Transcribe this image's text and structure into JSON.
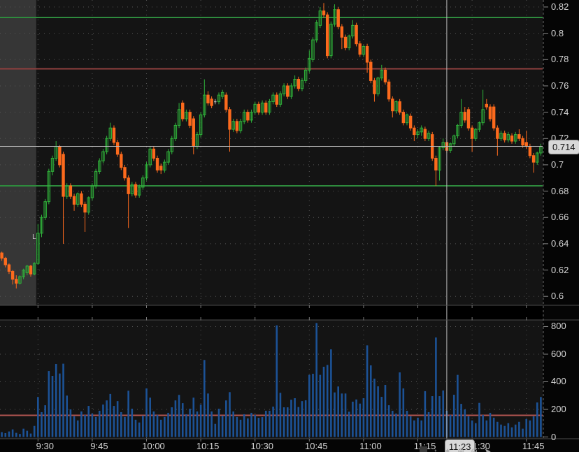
{
  "colors": {
    "up_candle": "#2fb23a",
    "down_candle": "#fc6a1d",
    "neutral_candle": "#b5b5b5",
    "volume_bar": "#1c5296",
    "level_green": "#2e8b3d",
    "level_red": "#8f3f3e",
    "volume_red_line": "#b15551",
    "crosshair": "#bbbbbb",
    "pane_background": "#141414",
    "outer_background": "#050505",
    "premarket_shade": "rgba(128,128,128,0.32)",
    "grid_dots": "#555555",
    "pane_border": "#4d4d4d",
    "axis_text": "#d6d6d6",
    "badge_background": "#d8d8d8",
    "badge_text": "#141414"
  },
  "chart_data": {
    "type": "candlestick_with_volume",
    "interval": "1m",
    "start_time": "9:20",
    "session_start_index": 10,
    "x_axis": {
      "tick_labels": [
        "9:30",
        "9:45",
        "10:00",
        "10:15",
        "10:30",
        "10:45",
        "11:00",
        "11:15",
        "11:30",
        "11:45"
      ],
      "tick_candle_indices": [
        10,
        25,
        40,
        55,
        70,
        85,
        100,
        115,
        130,
        145
      ],
      "crosshair_label": "11:23",
      "crosshair_candle_index": 123
    },
    "price_axis": {
      "tick_labels": [
        "0.82",
        "0.8",
        "0.78",
        "0.76",
        "0.74",
        "0.72",
        "0.7",
        "0.68",
        "0.66",
        "0.64",
        "0.62",
        "0.6"
      ],
      "tick_values": [
        0.82,
        0.8,
        0.78,
        0.76,
        0.74,
        0.72,
        0.7,
        0.68,
        0.66,
        0.64,
        0.62,
        0.6
      ],
      "view_max": 0.8253,
      "view_min": 0.5932,
      "last_price": 0.714,
      "last_price_label": "0.714"
    },
    "volume_axis": {
      "tick_labels": [
        "800",
        "600",
        "400",
        "200",
        "0"
      ],
      "tick_values": [
        800,
        600,
        400,
        200,
        0
      ],
      "view_max": 848,
      "red_line_value": 157
    },
    "levels": {
      "green_lines": [
        0.812,
        0.684
      ],
      "red_lines": [
        0.773
      ]
    },
    "marker": {
      "text": "L",
      "candle_index": 9,
      "price": 0.645
    },
    "candles": [
      [
        0.633,
        0.634,
        0.627,
        0.629
      ],
      [
        0.629,
        0.63,
        0.622,
        0.624
      ],
      [
        0.624,
        0.625,
        0.617,
        0.619
      ],
      [
        0.619,
        0.62,
        0.609,
        0.613
      ],
      [
        0.613,
        0.616,
        0.606,
        0.61
      ],
      [
        0.61,
        0.616,
        0.609,
        0.615
      ],
      [
        0.615,
        0.621,
        0.613,
        0.62
      ],
      [
        0.618,
        0.624,
        0.616,
        0.623
      ],
      [
        0.623,
        0.624,
        0.615,
        0.617
      ],
      [
        0.617,
        0.626,
        0.616,
        0.625
      ],
      [
        0.625,
        0.655,
        0.624,
        0.648
      ],
      [
        0.648,
        0.662,
        0.645,
        0.66
      ],
      [
        0.66,
        0.674,
        0.658,
        0.672
      ],
      [
        0.672,
        0.697,
        0.67,
        0.695
      ],
      [
        0.695,
        0.707,
        0.692,
        0.705
      ],
      [
        0.705,
        0.718,
        0.703,
        0.714
      ],
      [
        0.714,
        0.715,
        0.698,
        0.7
      ],
      [
        0.708,
        0.71,
        0.64,
        0.676
      ],
      [
        0.676,
        0.686,
        0.674,
        0.684
      ],
      [
        0.684,
        0.686,
        0.674,
        0.676
      ],
      [
        0.676,
        0.678,
        0.665,
        0.67
      ],
      [
        0.67,
        0.679,
        0.668,
        0.678
      ],
      [
        0.678,
        0.68,
        0.668,
        0.67
      ],
      [
        0.67,
        0.672,
        0.649,
        0.664
      ],
      [
        0.664,
        0.676,
        0.662,
        0.675
      ],
      [
        0.675,
        0.686,
        0.673,
        0.684
      ],
      [
        0.684,
        0.697,
        0.682,
        0.695
      ],
      [
        0.695,
        0.705,
        0.693,
        0.703
      ],
      [
        0.703,
        0.712,
        0.701,
        0.71
      ],
      [
        0.71,
        0.722,
        0.708,
        0.72
      ],
      [
        0.72,
        0.732,
        0.718,
        0.728
      ],
      [
        0.728,
        0.73,
        0.715,
        0.717
      ],
      [
        0.717,
        0.719,
        0.706,
        0.708
      ],
      [
        0.708,
        0.71,
        0.696,
        0.698
      ],
      [
        0.698,
        0.7,
        0.688,
        0.69
      ],
      [
        0.69,
        0.692,
        0.652,
        0.678
      ],
      [
        0.678,
        0.687,
        0.676,
        0.685
      ],
      [
        0.685,
        0.687,
        0.675,
        0.677
      ],
      [
        0.677,
        0.685,
        0.675,
        0.683
      ],
      [
        0.683,
        0.692,
        0.681,
        0.69
      ],
      [
        0.69,
        0.702,
        0.688,
        0.7
      ],
      [
        0.7,
        0.714,
        0.698,
        0.712
      ],
      [
        0.712,
        0.714,
        0.703,
        0.705
      ],
      [
        0.705,
        0.707,
        0.694,
        0.696
      ],
      [
        0.699,
        0.701,
        0.693,
        0.696
      ],
      [
        0.696,
        0.704,
        0.694,
        0.702
      ],
      [
        0.702,
        0.712,
        0.7,
        0.71
      ],
      [
        0.71,
        0.722,
        0.708,
        0.72
      ],
      [
        0.72,
        0.732,
        0.718,
        0.73
      ],
      [
        0.73,
        0.747,
        0.728,
        0.742
      ],
      [
        0.747,
        0.749,
        0.733,
        0.735
      ],
      [
        0.735,
        0.742,
        0.733,
        0.74
      ],
      [
        0.74,
        0.742,
        0.728,
        0.73
      ],
      [
        0.735,
        0.737,
        0.708,
        0.714
      ],
      [
        0.714,
        0.725,
        0.712,
        0.723
      ],
      [
        0.723,
        0.74,
        0.721,
        0.738
      ],
      [
        0.738,
        0.765,
        0.736,
        0.753
      ],
      [
        0.753,
        0.756,
        0.745,
        0.747
      ],
      [
        0.75,
        0.752,
        0.743,
        0.745
      ],
      [
        0.748,
        0.75,
        0.746,
        0.748
      ],
      [
        0.748,
        0.755,
        0.746,
        0.753
      ],
      [
        0.752,
        0.757,
        0.75,
        0.755
      ],
      [
        0.753,
        0.755,
        0.74,
        0.742
      ],
      [
        0.742,
        0.744,
        0.71,
        0.727
      ],
      [
        0.727,
        0.735,
        0.725,
        0.733
      ],
      [
        0.733,
        0.735,
        0.724,
        0.726
      ],
      [
        0.726,
        0.735,
        0.724,
        0.733
      ],
      [
        0.733,
        0.742,
        0.731,
        0.74
      ],
      [
        0.74,
        0.742,
        0.732,
        0.734
      ],
      [
        0.734,
        0.742,
        0.732,
        0.74
      ],
      [
        0.74,
        0.748,
        0.738,
        0.746
      ],
      [
        0.746,
        0.748,
        0.738,
        0.74
      ],
      [
        0.74,
        0.749,
        0.738,
        0.747
      ],
      [
        0.747,
        0.749,
        0.738,
        0.74
      ],
      [
        0.74,
        0.75,
        0.738,
        0.748
      ],
      [
        0.748,
        0.755,
        0.746,
        0.753
      ],
      [
        0.753,
        0.755,
        0.744,
        0.746
      ],
      [
        0.746,
        0.756,
        0.744,
        0.754
      ],
      [
        0.754,
        0.762,
        0.752,
        0.76
      ],
      [
        0.76,
        0.762,
        0.75,
        0.752
      ],
      [
        0.752,
        0.762,
        0.75,
        0.76
      ],
      [
        0.76,
        0.768,
        0.758,
        0.765
      ],
      [
        0.765,
        0.767,
        0.756,
        0.758
      ],
      [
        0.758,
        0.766,
        0.756,
        0.764
      ],
      [
        0.764,
        0.774,
        0.762,
        0.772
      ],
      [
        0.772,
        0.787,
        0.77,
        0.781
      ],
      [
        0.78,
        0.797,
        0.778,
        0.795
      ],
      [
        0.795,
        0.81,
        0.793,
        0.808
      ],
      [
        0.806,
        0.82,
        0.804,
        0.817
      ],
      [
        0.817,
        0.823,
        0.812,
        0.814
      ],
      [
        0.814,
        0.816,
        0.781,
        0.783
      ],
      [
        0.783,
        0.809,
        0.781,
        0.807
      ],
      [
        0.807,
        0.822,
        0.805,
        0.818
      ],
      [
        0.818,
        0.82,
        0.803,
        0.805
      ],
      [
        0.805,
        0.807,
        0.788,
        0.797
      ],
      [
        0.797,
        0.799,
        0.787,
        0.789
      ],
      [
        0.789,
        0.799,
        0.787,
        0.798
      ],
      [
        0.798,
        0.81,
        0.796,
        0.806
      ],
      [
        0.806,
        0.808,
        0.79,
        0.792
      ],
      [
        0.792,
        0.794,
        0.782,
        0.784
      ],
      [
        0.784,
        0.791,
        0.782,
        0.79
      ],
      [
        0.79,
        0.792,
        0.77,
        0.778
      ],
      [
        0.778,
        0.78,
        0.762,
        0.764
      ],
      [
        0.764,
        0.766,
        0.748,
        0.754
      ],
      [
        0.754,
        0.767,
        0.752,
        0.766
      ],
      [
        0.766,
        0.776,
        0.764,
        0.772
      ],
      [
        0.772,
        0.774,
        0.761,
        0.763
      ],
      [
        0.763,
        0.765,
        0.748,
        0.75
      ],
      [
        0.75,
        0.752,
        0.736,
        0.741
      ],
      [
        0.741,
        0.749,
        0.739,
        0.748
      ],
      [
        0.748,
        0.75,
        0.738,
        0.74
      ],
      [
        0.74,
        0.742,
        0.73,
        0.732
      ],
      [
        0.732,
        0.739,
        0.73,
        0.738
      ],
      [
        0.737,
        0.739,
        0.726,
        0.728
      ],
      [
        0.728,
        0.73,
        0.718,
        0.723
      ],
      [
        0.723,
        0.727,
        0.72,
        0.725
      ],
      [
        0.725,
        0.73,
        0.722,
        0.728
      ],
      [
        0.727,
        0.729,
        0.718,
        0.72
      ],
      [
        0.72,
        0.726,
        0.718,
        0.724
      ],
      [
        0.723,
        0.725,
        0.703,
        0.705
      ],
      [
        0.705,
        0.707,
        0.684,
        0.696
      ],
      [
        0.696,
        0.714,
        0.688,
        0.713
      ],
      [
        0.713,
        0.72,
        0.711,
        0.717
      ],
      [
        0.717,
        0.719,
        0.709,
        0.711
      ],
      [
        0.711,
        0.717,
        0.709,
        0.716
      ],
      [
        0.716,
        0.723,
        0.714,
        0.722
      ],
      [
        0.722,
        0.731,
        0.72,
        0.73
      ],
      [
        0.73,
        0.75,
        0.728,
        0.74
      ],
      [
        0.74,
        0.744,
        0.732,
        0.734
      ],
      [
        0.742,
        0.744,
        0.726,
        0.728
      ],
      [
        0.728,
        0.73,
        0.71,
        0.72
      ],
      [
        0.72,
        0.728,
        0.718,
        0.727
      ],
      [
        0.727,
        0.733,
        0.725,
        0.732
      ],
      [
        0.732,
        0.757,
        0.73,
        0.742
      ],
      [
        0.746,
        0.75,
        0.742,
        0.744
      ],
      [
        0.744,
        0.746,
        0.733,
        0.735
      ],
      [
        0.744,
        0.746,
        0.726,
        0.728
      ],
      [
        0.728,
        0.73,
        0.707,
        0.72
      ],
      [
        0.72,
        0.726,
        0.718,
        0.724
      ],
      [
        0.724,
        0.726,
        0.717,
        0.719
      ],
      [
        0.719,
        0.725,
        0.717,
        0.723
      ],
      [
        0.722,
        0.724,
        0.716,
        0.718
      ],
      [
        0.718,
        0.725,
        0.716,
        0.723
      ],
      [
        0.723,
        0.727,
        0.718,
        0.72
      ],
      [
        0.72,
        0.722,
        0.713,
        0.715
      ],
      [
        0.717,
        0.726,
        0.712,
        0.714
      ],
      [
        0.714,
        0.716,
        0.705,
        0.707
      ],
      [
        0.707,
        0.709,
        0.694,
        0.702
      ],
      [
        0.702,
        0.71,
        0.7,
        0.709
      ],
      [
        0.709,
        0.716,
        0.707,
        0.714
      ]
    ],
    "volumes": [
      35,
      28,
      40,
      55,
      30,
      22,
      60,
      45,
      25,
      80,
      290,
      180,
      230,
      478,
      443,
      529,
      460,
      531,
      300,
      200,
      150,
      120,
      185,
      160,
      225,
      170,
      145,
      190,
      235,
      265,
      312,
      225,
      260,
      180,
      145,
      335,
      205,
      125,
      105,
      155,
      352,
      285,
      185,
      160,
      125,
      145,
      175,
      215,
      265,
      305,
      245,
      165,
      205,
      285,
      185,
      235,
      558,
      315,
      185,
      95,
      205,
      155,
      265,
      325,
      185,
      145,
      125,
      165,
      135,
      175,
      160,
      139,
      144,
      190,
      190,
      220,
      809,
      320,
      215,
      215,
      270,
      281,
      217,
      260,
      266,
      450,
      458,
      826,
      450,
      509,
      522,
      635,
      323,
      366,
      315,
      315,
      183,
      256,
      272,
      242,
      281,
      664,
      519,
      423,
      367,
      291,
      377,
      230,
      190,
      170,
      468,
      352,
      190,
      150,
      120,
      140,
      120,
      332,
      180,
      296,
      721,
      296,
      337,
      190,
      160,
      306,
      450,
      240,
      200,
      150,
      120,
      100,
      247,
      160,
      120,
      175,
      140,
      110,
      90,
      80,
      100,
      70,
      90,
      110,
      60,
      130,
      120,
      150,
      250,
      290
    ]
  },
  "toolbar": {
    "icons": [
      {
        "name": "panel-icon",
        "glyph": ""
      },
      {
        "name": "interval-icon",
        "glyph": "↕"
      },
      {
        "name": "star-icon",
        "glyph": "✦"
      },
      {
        "name": "zoom-in-icon",
        "glyph": "⊕"
      },
      {
        "name": "zoom-out-icon",
        "glyph": "⊖"
      },
      {
        "name": "pointer-icon",
        "glyph": "➤"
      }
    ]
  }
}
